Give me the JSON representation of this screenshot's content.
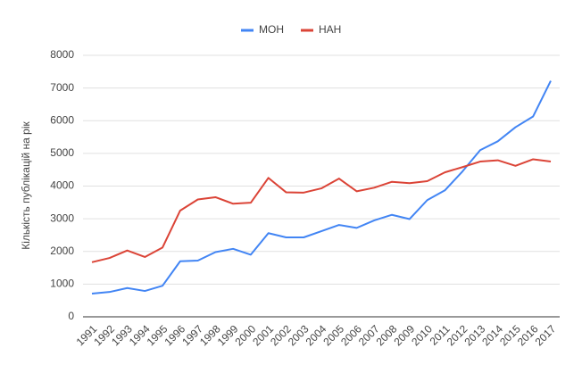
{
  "chart_data": {
    "type": "line",
    "y_label": "Кількість публікацій на рік",
    "categories": [
      "1991",
      "1992",
      "1993",
      "1994",
      "1995",
      "1996",
      "1997",
      "1998",
      "1999",
      "2000",
      "2001",
      "2002",
      "2003",
      "2004",
      "2005",
      "2006",
      "2007",
      "2008",
      "2009",
      "2010",
      "2011",
      "2012",
      "2013",
      "2014",
      "2015",
      "2016",
      "2017"
    ],
    "series": [
      {
        "name": "МОН",
        "color": "#4285f4",
        "values": [
          710,
          760,
          880,
          790,
          950,
          1700,
          1720,
          1980,
          2080,
          1900,
          2560,
          2430,
          2430,
          2620,
          2810,
          2720,
          2950,
          3120,
          2990,
          3570,
          3870,
          4450,
          5100,
          5370,
          5800,
          6130,
          7220
        ]
      },
      {
        "name": "НАН",
        "color": "#db4437",
        "values": [
          1670,
          1800,
          2030,
          1830,
          2120,
          3250,
          3590,
          3660,
          3460,
          3490,
          4250,
          3810,
          3800,
          3930,
          4230,
          3840,
          3950,
          4130,
          4090,
          4150,
          4420,
          4580,
          4750,
          4790,
          4620,
          4820,
          4750
        ]
      }
    ],
    "ylim": [
      0,
      8000
    ],
    "yticks": [
      0,
      1000,
      2000,
      3000,
      4000,
      5000,
      6000,
      7000,
      8000
    ],
    "grid": true,
    "legend": "top"
  }
}
